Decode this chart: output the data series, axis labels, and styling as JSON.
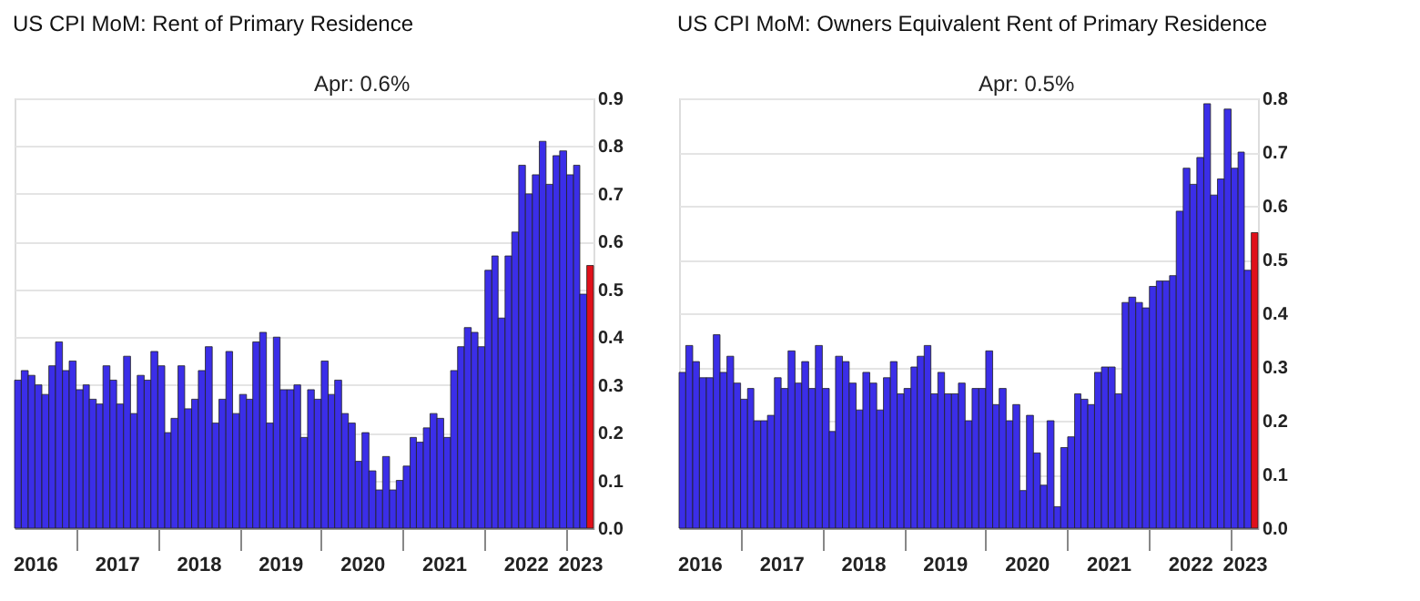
{
  "chart_data": [
    {
      "type": "bar",
      "title": "US CPI MoM: Rent of Primary Residence",
      "annotations": [
        "Apr:  0.6%"
      ],
      "x": [
        "2016-04",
        "2016-05",
        "2016-06",
        "2016-07",
        "2016-08",
        "2016-09",
        "2016-10",
        "2016-11",
        "2016-12",
        "2017-01",
        "2017-02",
        "2017-03",
        "2017-04",
        "2017-05",
        "2017-06",
        "2017-07",
        "2017-08",
        "2017-09",
        "2017-10",
        "2017-11",
        "2017-12",
        "2018-01",
        "2018-02",
        "2018-03",
        "2018-04",
        "2018-05",
        "2018-06",
        "2018-07",
        "2018-08",
        "2018-09",
        "2018-10",
        "2018-11",
        "2018-12",
        "2019-01",
        "2019-02",
        "2019-03",
        "2019-04",
        "2019-05",
        "2019-06",
        "2019-07",
        "2019-08",
        "2019-09",
        "2019-10",
        "2019-11",
        "2019-12",
        "2020-01",
        "2020-02",
        "2020-03",
        "2020-04",
        "2020-05",
        "2020-06",
        "2020-07",
        "2020-08",
        "2020-09",
        "2020-10",
        "2020-11",
        "2020-12",
        "2021-01",
        "2021-02",
        "2021-03",
        "2021-04",
        "2021-05",
        "2021-06",
        "2021-07",
        "2021-08",
        "2021-09",
        "2021-10",
        "2021-11",
        "2021-12",
        "2022-01",
        "2022-02",
        "2022-03",
        "2022-04",
        "2022-05",
        "2022-06",
        "2022-07",
        "2022-08",
        "2022-09",
        "2022-10",
        "2022-11",
        "2022-12",
        "2023-01",
        "2023-02",
        "2023-03",
        "2023-04"
      ],
      "values": [
        0.31,
        0.33,
        0.32,
        0.3,
        0.28,
        0.34,
        0.39,
        0.33,
        0.35,
        0.29,
        0.3,
        0.27,
        0.26,
        0.34,
        0.31,
        0.26,
        0.36,
        0.24,
        0.32,
        0.31,
        0.37,
        0.34,
        0.2,
        0.23,
        0.34,
        0.25,
        0.27,
        0.33,
        0.38,
        0.22,
        0.27,
        0.37,
        0.24,
        0.28,
        0.27,
        0.39,
        0.41,
        0.22,
        0.4,
        0.29,
        0.29,
        0.3,
        0.19,
        0.29,
        0.27,
        0.35,
        0.28,
        0.31,
        0.24,
        0.22,
        0.14,
        0.2,
        0.12,
        0.08,
        0.15,
        0.08,
        0.1,
        0.13,
        0.19,
        0.18,
        0.21,
        0.24,
        0.23,
        0.19,
        0.33,
        0.38,
        0.42,
        0.41,
        0.38,
        0.54,
        0.57,
        0.44,
        0.57,
        0.62,
        0.76,
        0.7,
        0.74,
        0.81,
        0.72,
        0.78,
        0.79,
        0.74,
        0.76,
        0.49,
        0.55
      ],
      "colors": [
        "#3b2ee8",
        "#3b2ee8",
        "#3b2ee8",
        "#3b2ee8",
        "#3b2ee8",
        "#3b2ee8",
        "#3b2ee8",
        "#3b2ee8",
        "#3b2ee8",
        "#3b2ee8",
        "#3b2ee8",
        "#3b2ee8",
        "#3b2ee8",
        "#3b2ee8",
        "#3b2ee8",
        "#3b2ee8",
        "#3b2ee8",
        "#3b2ee8",
        "#3b2ee8",
        "#3b2ee8",
        "#3b2ee8",
        "#3b2ee8",
        "#3b2ee8",
        "#3b2ee8",
        "#3b2ee8",
        "#3b2ee8",
        "#3b2ee8",
        "#3b2ee8",
        "#3b2ee8",
        "#3b2ee8",
        "#3b2ee8",
        "#3b2ee8",
        "#3b2ee8",
        "#3b2ee8",
        "#3b2ee8",
        "#3b2ee8",
        "#3b2ee8",
        "#3b2ee8",
        "#3b2ee8",
        "#3b2ee8",
        "#3b2ee8",
        "#3b2ee8",
        "#3b2ee8",
        "#3b2ee8",
        "#3b2ee8",
        "#3b2ee8",
        "#3b2ee8",
        "#3b2ee8",
        "#3b2ee8",
        "#3b2ee8",
        "#3b2ee8",
        "#3b2ee8",
        "#3b2ee8",
        "#3b2ee8",
        "#3b2ee8",
        "#3b2ee8",
        "#3b2ee8",
        "#3b2ee8",
        "#3b2ee8",
        "#3b2ee8",
        "#3b2ee8",
        "#3b2ee8",
        "#3b2ee8",
        "#3b2ee8",
        "#3b2ee8",
        "#3b2ee8",
        "#3b2ee8",
        "#3b2ee8",
        "#3b2ee8",
        "#3b2ee8",
        "#3b2ee8",
        "#3b2ee8",
        "#3b2ee8",
        "#3b2ee8",
        "#3b2ee8",
        "#3b2ee8",
        "#3b2ee8",
        "#3b2ee8",
        "#3b2ee8",
        "#3b2ee8",
        "#3b2ee8",
        "#3b2ee8",
        "#3b2ee8",
        "#3b2ee8",
        "#e0101a"
      ],
      "xlim": [
        "2016-04",
        "2023-05"
      ],
      "xticks": [
        {
          "value": "2016-07",
          "label": "2016"
        },
        {
          "value": "2017-01",
          "label": null
        },
        {
          "value": "2017-07",
          "label": "2017"
        },
        {
          "value": "2018-01",
          "label": null
        },
        {
          "value": "2018-07",
          "label": "2018"
        },
        {
          "value": "2019-01",
          "label": null
        },
        {
          "value": "2019-07",
          "label": "2019"
        },
        {
          "value": "2020-01",
          "label": null
        },
        {
          "value": "2020-07",
          "label": "2020"
        },
        {
          "value": "2021-01",
          "label": null
        },
        {
          "value": "2021-07",
          "label": "2021"
        },
        {
          "value": "2022-01",
          "label": null
        },
        {
          "value": "2022-07",
          "label": "2022"
        },
        {
          "value": "2023-01",
          "label": null
        },
        {
          "value": "2023-03",
          "label": "2023"
        }
      ],
      "ylim": [
        0,
        0.9
      ],
      "yticks": [
        {
          "value": 0,
          "label": "0.0"
        },
        0.1,
        0.2,
        0.3,
        0.4,
        0.5,
        0.6,
        0.7,
        0.8,
        0.9
      ],
      "grid": "y"
    },
    {
      "type": "bar",
      "title": "US CPI MoM: Owners Equivalent Rent of Primary Residence",
      "annotations": [
        "Apr:  0.5%"
      ],
      "x": [
        "2016-04",
        "2016-05",
        "2016-06",
        "2016-07",
        "2016-08",
        "2016-09",
        "2016-10",
        "2016-11",
        "2016-12",
        "2017-01",
        "2017-02",
        "2017-03",
        "2017-04",
        "2017-05",
        "2017-06",
        "2017-07",
        "2017-08",
        "2017-09",
        "2017-10",
        "2017-11",
        "2017-12",
        "2018-01",
        "2018-02",
        "2018-03",
        "2018-04",
        "2018-05",
        "2018-06",
        "2018-07",
        "2018-08",
        "2018-09",
        "2018-10",
        "2018-11",
        "2018-12",
        "2019-01",
        "2019-02",
        "2019-03",
        "2019-04",
        "2019-05",
        "2019-06",
        "2019-07",
        "2019-08",
        "2019-09",
        "2019-10",
        "2019-11",
        "2019-12",
        "2020-01",
        "2020-02",
        "2020-03",
        "2020-04",
        "2020-05",
        "2020-06",
        "2020-07",
        "2020-08",
        "2020-09",
        "2020-10",
        "2020-11",
        "2020-12",
        "2021-01",
        "2021-02",
        "2021-03",
        "2021-04",
        "2021-05",
        "2021-06",
        "2021-07",
        "2021-08",
        "2021-09",
        "2021-10",
        "2021-11",
        "2021-12",
        "2022-01",
        "2022-02",
        "2022-03",
        "2022-04",
        "2022-05",
        "2022-06",
        "2022-07",
        "2022-08",
        "2022-09",
        "2022-10",
        "2022-11",
        "2022-12",
        "2023-01",
        "2023-02",
        "2023-03",
        "2023-04"
      ],
      "values": [
        0.29,
        0.34,
        0.31,
        0.28,
        0.28,
        0.36,
        0.29,
        0.32,
        0.27,
        0.24,
        0.26,
        0.2,
        0.2,
        0.21,
        0.28,
        0.26,
        0.33,
        0.27,
        0.31,
        0.26,
        0.34,
        0.26,
        0.18,
        0.32,
        0.31,
        0.27,
        0.22,
        0.29,
        0.27,
        0.22,
        0.28,
        0.31,
        0.25,
        0.26,
        0.3,
        0.32,
        0.34,
        0.25,
        0.29,
        0.25,
        0.25,
        0.27,
        0.2,
        0.26,
        0.26,
        0.33,
        0.23,
        0.26,
        0.2,
        0.23,
        0.07,
        0.21,
        0.14,
        0.08,
        0.2,
        0.04,
        0.15,
        0.17,
        0.25,
        0.24,
        0.23,
        0.29,
        0.3,
        0.3,
        0.25,
        0.42,
        0.43,
        0.42,
        0.41,
        0.45,
        0.46,
        0.46,
        0.47,
        0.59,
        0.67,
        0.64,
        0.69,
        0.79,
        0.62,
        0.65,
        0.78,
        0.67,
        0.7,
        0.48,
        0.55
      ],
      "colors": [
        "#3b2ee8",
        "#3b2ee8",
        "#3b2ee8",
        "#3b2ee8",
        "#3b2ee8",
        "#3b2ee8",
        "#3b2ee8",
        "#3b2ee8",
        "#3b2ee8",
        "#3b2ee8",
        "#3b2ee8",
        "#3b2ee8",
        "#3b2ee8",
        "#3b2ee8",
        "#3b2ee8",
        "#3b2ee8",
        "#3b2ee8",
        "#3b2ee8",
        "#3b2ee8",
        "#3b2ee8",
        "#3b2ee8",
        "#3b2ee8",
        "#3b2ee8",
        "#3b2ee8",
        "#3b2ee8",
        "#3b2ee8",
        "#3b2ee8",
        "#3b2ee8",
        "#3b2ee8",
        "#3b2ee8",
        "#3b2ee8",
        "#3b2ee8",
        "#3b2ee8",
        "#3b2ee8",
        "#3b2ee8",
        "#3b2ee8",
        "#3b2ee8",
        "#3b2ee8",
        "#3b2ee8",
        "#3b2ee8",
        "#3b2ee8",
        "#3b2ee8",
        "#3b2ee8",
        "#3b2ee8",
        "#3b2ee8",
        "#3b2ee8",
        "#3b2ee8",
        "#3b2ee8",
        "#3b2ee8",
        "#3b2ee8",
        "#3b2ee8",
        "#3b2ee8",
        "#3b2ee8",
        "#3b2ee8",
        "#3b2ee8",
        "#3b2ee8",
        "#3b2ee8",
        "#3b2ee8",
        "#3b2ee8",
        "#3b2ee8",
        "#3b2ee8",
        "#3b2ee8",
        "#3b2ee8",
        "#3b2ee8",
        "#3b2ee8",
        "#3b2ee8",
        "#3b2ee8",
        "#3b2ee8",
        "#3b2ee8",
        "#3b2ee8",
        "#3b2ee8",
        "#3b2ee8",
        "#3b2ee8",
        "#3b2ee8",
        "#3b2ee8",
        "#3b2ee8",
        "#3b2ee8",
        "#3b2ee8",
        "#3b2ee8",
        "#3b2ee8",
        "#3b2ee8",
        "#3b2ee8",
        "#3b2ee8",
        "#3b2ee8",
        "#e0101a"
      ],
      "xlim": [
        "2016-04",
        "2023-05"
      ],
      "xticks": [
        {
          "value": "2016-07",
          "label": "2016"
        },
        {
          "value": "2017-01",
          "label": null
        },
        {
          "value": "2017-07",
          "label": "2017"
        },
        {
          "value": "2018-01",
          "label": null
        },
        {
          "value": "2018-07",
          "label": "2018"
        },
        {
          "value": "2019-01",
          "label": null
        },
        {
          "value": "2019-07",
          "label": "2019"
        },
        {
          "value": "2020-01",
          "label": null
        },
        {
          "value": "2020-07",
          "label": "2020"
        },
        {
          "value": "2021-01",
          "label": null
        },
        {
          "value": "2021-07",
          "label": "2021"
        },
        {
          "value": "2022-01",
          "label": null
        },
        {
          "value": "2022-07",
          "label": "2022"
        },
        {
          "value": "2023-01",
          "label": null
        },
        {
          "value": "2023-03",
          "label": "2023"
        }
      ],
      "ylim": [
        0,
        0.8
      ],
      "yticks": [
        {
          "value": 0,
          "label": "0.0"
        },
        0.1,
        0.2,
        0.3,
        0.4,
        0.5,
        0.6,
        0.7,
        0.8
      ],
      "grid": "y"
    }
  ]
}
